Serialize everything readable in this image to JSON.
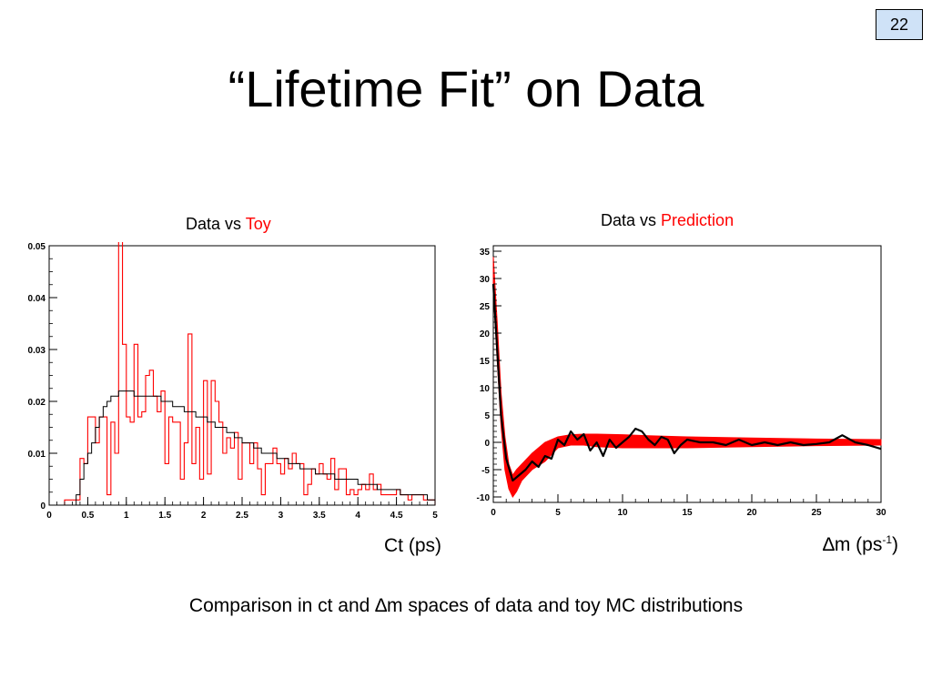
{
  "page_number": "22",
  "title": "“Lifetime Fit” on Data",
  "left_panel": {
    "label_prefix": "Data vs ",
    "label_accent": "Toy",
    "xlabel": "Ct (ps)"
  },
  "right_panel": {
    "label_prefix": "Data vs ",
    "label_accent": "Prediction",
    "xlabel_symbol": "∆",
    "xlabel_main": "m (ps",
    "xlabel_sup": "-1",
    "xlabel_close": ")"
  },
  "caption_parts": {
    "before": "Comparison in ct and ",
    "symbol": "∆",
    "after": "m spaces of data and toy MC distributions"
  },
  "colors": {
    "data": "#ff0000",
    "model": "#000000",
    "accent": "#ff0000",
    "page_badge": "#cfe2f7"
  },
  "chart_data": [
    {
      "type": "histogram",
      "xlim": [
        0,
        5
      ],
      "ylim": [
        0,
        0.05
      ],
      "xticks": [
        "0",
        "0.5",
        "1",
        "1.5",
        "2",
        "2.5",
        "3",
        "3.5",
        "4",
        "4.5",
        "5"
      ],
      "yticks": [
        "0",
        "0.01",
        "0.02",
        "0.03",
        "0.04",
        "0.05"
      ],
      "bin_width": 0.05,
      "series": [
        {
          "color": "#ff0000",
          "values": [
            0,
            0,
            0,
            0,
            0.001,
            0.001,
            0.001,
            0.001,
            0.009,
            0.008,
            0.017,
            0.017,
            0.012,
            0.017,
            0.017,
            0.002,
            0.016,
            0.01,
            0.051,
            0.031,
            0.017,
            0.016,
            0.031,
            0.017,
            0.018,
            0.025,
            0.026,
            0.021,
            0.018,
            0.022,
            0.008,
            0.017,
            0.016,
            0.016,
            0.005,
            0.012,
            0.033,
            0.008,
            0.015,
            0.005,
            0.024,
            0.006,
            0.024,
            0.02,
            0.016,
            0.01,
            0.013,
            0.011,
            0.014,
            0.005,
            0.012,
            0.012,
            0.008,
            0.012,
            0.007,
            0.002,
            0.008,
            0.008,
            0.011,
            0.008,
            0.006,
            0.009,
            0.007,
            0.01,
            0.008,
            0.008,
            0.002,
            0.004,
            0.007,
            0.006,
            0.008,
            0.006,
            0.005,
            0.009,
            0.003,
            0.007,
            0.007,
            0.002,
            0.003,
            0.002,
            0.003,
            0.004,
            0.003,
            0.006,
            0.003,
            0.004,
            0.002,
            0.002,
            0.002,
            0.002,
            0.003,
            0.002,
            0.002,
            0.001,
            0.002,
            0.002,
            0.002,
            0.001,
            0.001,
            0.001
          ]
        },
        {
          "color": "#000000",
          "values": [
            0,
            0,
            0,
            0,
            0,
            0,
            0,
            0.002,
            0.005,
            0.008,
            0.01,
            0.012,
            0.015,
            0.017,
            0.019,
            0.02,
            0.021,
            0.021,
            0.022,
            0.022,
            0.022,
            0.022,
            0.021,
            0.021,
            0.021,
            0.021,
            0.021,
            0.021,
            0.021,
            0.02,
            0.02,
            0.02,
            0.019,
            0.019,
            0.019,
            0.018,
            0.018,
            0.018,
            0.017,
            0.017,
            0.017,
            0.016,
            0.016,
            0.015,
            0.015,
            0.015,
            0.014,
            0.014,
            0.013,
            0.013,
            0.012,
            0.012,
            0.012,
            0.011,
            0.011,
            0.01,
            0.01,
            0.01,
            0.01,
            0.009,
            0.009,
            0.009,
            0.008,
            0.008,
            0.008,
            0.007,
            0.007,
            0.007,
            0.007,
            0.006,
            0.006,
            0.006,
            0.006,
            0.006,
            0.005,
            0.005,
            0.005,
            0.005,
            0.005,
            0.005,
            0.004,
            0.004,
            0.004,
            0.004,
            0.004,
            0.003,
            0.003,
            0.003,
            0.003,
            0.003,
            0.003,
            0.002,
            0.002,
            0.002,
            0.002,
            0.002,
            0.002,
            0.002,
            0.001,
            0.001
          ]
        }
      ]
    },
    {
      "type": "line",
      "xlim": [
        0,
        30
      ],
      "ylim": [
        -11,
        36
      ],
      "xticks": [
        "0",
        "5",
        "10",
        "15",
        "20",
        "25",
        "30"
      ],
      "yticks": [
        "-10",
        "-5",
        "0",
        "5",
        "10",
        "15",
        "20",
        "25",
        "30",
        "35"
      ],
      "series": [
        {
          "color": "#ff0000",
          "x": [
            0,
            0.3,
            0.6,
            0.9,
            1.2,
            1.5,
            1.8,
            2.2,
            3,
            4,
            5,
            6,
            7,
            8,
            10,
            12,
            15,
            20,
            25,
            30
          ],
          "lo": [
            28,
            15,
            3,
            -5,
            -8.5,
            -10,
            -9,
            -7,
            -5,
            -3.5,
            -1,
            -0.5,
            -0.5,
            -0.8,
            -1,
            -1,
            -1,
            -0.8,
            -0.6,
            -0.5
          ],
          "hi": [
            34,
            22,
            9,
            1,
            -4,
            -6,
            -5,
            -4,
            -2,
            0,
            1,
            1.4,
            1.5,
            1.5,
            1.4,
            1.2,
            1,
            0.8,
            0.6,
            0.5
          ]
        },
        {
          "color": "#000000",
          "x": [
            0,
            0.3,
            0.6,
            1,
            1.5,
            2,
            2.5,
            3,
            3.5,
            4,
            4.5,
            5,
            5.5,
            6,
            6.5,
            7,
            7.5,
            8,
            8.5,
            9,
            9.5,
            10,
            10.5,
            11,
            11.5,
            12,
            12.5,
            13,
            13.5,
            14,
            14.5,
            15,
            16,
            17,
            18,
            19,
            20,
            21,
            22,
            23,
            24,
            25,
            26,
            27,
            28,
            29,
            30
          ],
          "y": [
            29,
            17,
            5,
            -3,
            -7,
            -6,
            -5,
            -3.5,
            -4.5,
            -2.5,
            -3,
            0.5,
            -0.5,
            2,
            0.5,
            1.5,
            -1.5,
            0,
            -2.5,
            0.5,
            -1,
            0,
            1,
            2.5,
            2,
            0.5,
            -0.5,
            1,
            0.5,
            -2,
            -0.5,
            0.5,
            0,
            0,
            -0.5,
            0.5,
            -0.5,
            0,
            -0.5,
            0,
            -0.5,
            -0.3,
            0,
            1.3,
            0,
            -0.5,
            -1.2
          ]
        }
      ]
    }
  ]
}
